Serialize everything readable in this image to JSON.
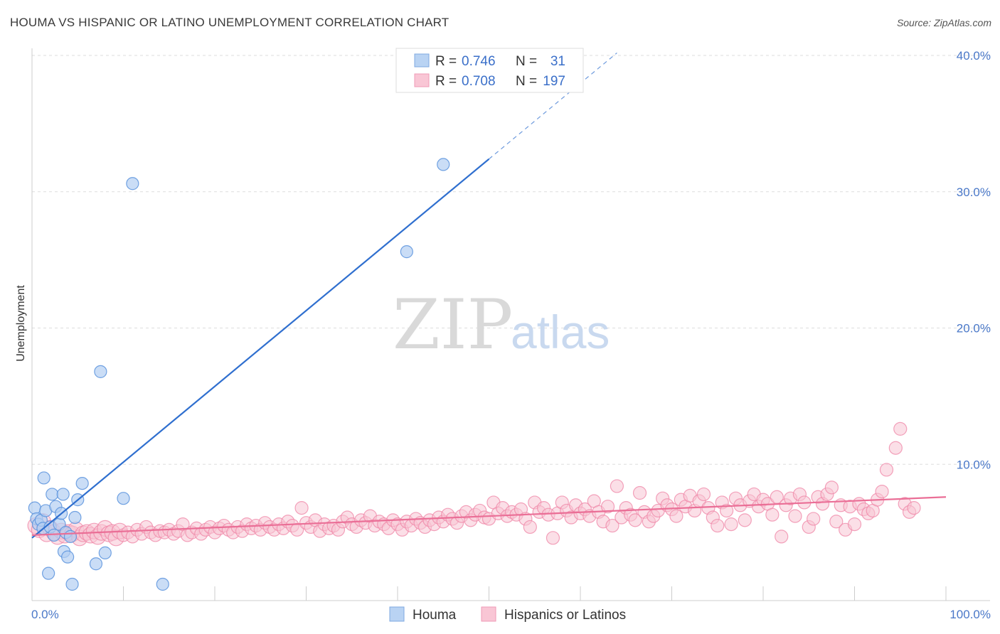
{
  "header": {
    "title": "HOUMA VS HISPANIC OR LATINO UNEMPLOYMENT CORRELATION CHART",
    "source": "Source: ZipAtlas.com"
  },
  "watermark": {
    "zip": "ZIP",
    "atlas": "atlas"
  },
  "legend": {
    "r_label": "R =",
    "n_label": "N =",
    "entries": [
      {
        "r": "0.746",
        "n": "31",
        "color": "#a9c8f0"
      },
      {
        "r": "0.708",
        "n": "197",
        "color": "#f7b8cb"
      }
    ]
  },
  "bottom_legend": [
    {
      "label": "Houma",
      "color": "#a9c8f0"
    },
    {
      "label": "Hispanics or Latinos",
      "color": "#f7b8cb"
    }
  ],
  "chart_data": {
    "type": "scatter",
    "ylabel": "Unemployment",
    "xlim": [
      0,
      100
    ],
    "ylim": [
      0,
      40
    ],
    "x_tick_labels": [
      "0.0%",
      "100.0%"
    ],
    "y_ticks": [
      10,
      20,
      30,
      40
    ],
    "y_tick_labels": [
      "10.0%",
      "20.0%",
      "30.0%",
      "40.0%"
    ],
    "grid": true,
    "colors": {
      "houma": "#5b93dd",
      "houma_fill": "#b4cff2",
      "hispanic": "#ef84a6",
      "hispanic_fill": "#f8c4d4",
      "houma_line": "#2f6fcf",
      "hispanic_line": "#ea6e96"
    },
    "series": [
      {
        "name": "Houma",
        "trend": {
          "x0": 0,
          "y0": 4.6,
          "x1": 50,
          "y1": 32.4,
          "dash_to_x": 64
        },
        "points": [
          [
            0.3,
            6.8
          ],
          [
            0.5,
            6.0
          ],
          [
            0.7,
            5.6
          ],
          [
            1.0,
            5.9
          ],
          [
            1.2,
            5.3
          ],
          [
            1.3,
            9.0
          ],
          [
            1.5,
            6.6
          ],
          [
            1.8,
            2.0
          ],
          [
            2.0,
            5.4
          ],
          [
            2.2,
            7.8
          ],
          [
            2.4,
            4.8
          ],
          [
            2.6,
            6.9
          ],
          [
            3.0,
            5.6
          ],
          [
            3.2,
            6.4
          ],
          [
            3.4,
            7.8
          ],
          [
            3.5,
            3.6
          ],
          [
            3.7,
            5.0
          ],
          [
            3.9,
            3.2
          ],
          [
            4.2,
            4.7
          ],
          [
            4.4,
            1.2
          ],
          [
            4.7,
            6.1
          ],
          [
            5.0,
            7.4
          ],
          [
            5.5,
            8.6
          ],
          [
            7.0,
            2.7
          ],
          [
            7.5,
            16.8
          ],
          [
            8.0,
            3.5
          ],
          [
            10.0,
            7.5
          ],
          [
            11.0,
            30.6
          ],
          [
            14.3,
            1.2
          ],
          [
            41.0,
            25.6
          ],
          [
            45.0,
            32.0
          ]
        ]
      },
      {
        "name": "Hispanics or Latinos",
        "trend": {
          "x0": 0,
          "y0": 4.8,
          "x1": 100,
          "y1": 7.6
        },
        "points": [
          [
            0.4,
            5.5
          ],
          [
            0.8,
            5.2
          ],
          [
            1.2,
            5.8
          ],
          [
            1.6,
            4.9
          ],
          [
            2.0,
            5.3
          ],
          [
            2.4,
            5.0
          ],
          [
            2.8,
            4.7
          ],
          [
            3.2,
            5.1
          ],
          [
            3.6,
            4.8
          ],
          [
            4.0,
            5.0
          ],
          [
            4.4,
            4.9
          ],
          [
            4.8,
            5.2
          ],
          [
            5.2,
            4.6
          ],
          [
            5.6,
            4.9
          ],
          [
            6.0,
            5.0
          ],
          [
            6.4,
            4.8
          ],
          [
            6.8,
            5.1
          ],
          [
            7.2,
            4.7
          ],
          [
            7.6,
            5.0
          ],
          [
            8.0,
            5.3
          ],
          [
            8.4,
            4.9
          ],
          [
            8.8,
            5.0
          ],
          [
            9.2,
            4.6
          ],
          [
            9.6,
            5.1
          ],
          [
            10.0,
            4.8
          ],
          [
            10.5,
            5.0
          ],
          [
            11.0,
            4.7
          ],
          [
            11.5,
            5.2
          ],
          [
            12.0,
            4.9
          ],
          [
            12.5,
            5.4
          ],
          [
            13.0,
            5.0
          ],
          [
            13.5,
            4.8
          ],
          [
            14.0,
            5.1
          ],
          [
            14.5,
            5.0
          ],
          [
            15.0,
            5.2
          ],
          [
            15.5,
            4.9
          ],
          [
            16.0,
            5.1
          ],
          [
            16.5,
            5.6
          ],
          [
            17.0,
            4.8
          ],
          [
            17.5,
            5.0
          ],
          [
            18.0,
            5.3
          ],
          [
            18.5,
            4.9
          ],
          [
            19.0,
            5.2
          ],
          [
            19.5,
            5.4
          ],
          [
            20.0,
            5.0
          ],
          [
            20.5,
            5.3
          ],
          [
            21.0,
            5.5
          ],
          [
            21.5,
            5.2
          ],
          [
            22.0,
            5.0
          ],
          [
            22.5,
            5.4
          ],
          [
            23.0,
            5.1
          ],
          [
            23.5,
            5.6
          ],
          [
            24.0,
            5.3
          ],
          [
            24.5,
            5.5
          ],
          [
            25.0,
            5.2
          ],
          [
            25.5,
            5.7
          ],
          [
            26.0,
            5.4
          ],
          [
            26.5,
            5.2
          ],
          [
            27.0,
            5.6
          ],
          [
            27.5,
            5.3
          ],
          [
            28.0,
            5.8
          ],
          [
            28.5,
            5.5
          ],
          [
            29.0,
            5.2
          ],
          [
            29.5,
            6.8
          ],
          [
            30.0,
            5.7
          ],
          [
            30.5,
            5.4
          ],
          [
            31.0,
            5.9
          ],
          [
            31.5,
            5.1
          ],
          [
            32.0,
            5.6
          ],
          [
            32.5,
            5.3
          ],
          [
            33.0,
            5.5
          ],
          [
            33.5,
            5.2
          ],
          [
            34.0,
            5.8
          ],
          [
            34.5,
            6.1
          ],
          [
            35.0,
            5.6
          ],
          [
            35.5,
            5.4
          ],
          [
            36.0,
            5.9
          ],
          [
            36.5,
            5.7
          ],
          [
            37.0,
            6.2
          ],
          [
            37.5,
            5.5
          ],
          [
            38.0,
            5.8
          ],
          [
            38.5,
            5.6
          ],
          [
            39.0,
            5.3
          ],
          [
            39.5,
            5.9
          ],
          [
            40.0,
            5.6
          ],
          [
            40.5,
            5.2
          ],
          [
            41.0,
            5.8
          ],
          [
            41.5,
            5.5
          ],
          [
            42.0,
            6.0
          ],
          [
            42.5,
            5.7
          ],
          [
            43.0,
            5.4
          ],
          [
            43.5,
            5.9
          ],
          [
            44.0,
            5.6
          ],
          [
            44.5,
            6.1
          ],
          [
            45.0,
            5.8
          ],
          [
            45.5,
            6.3
          ],
          [
            46.0,
            6.0
          ],
          [
            46.5,
            5.7
          ],
          [
            47.0,
            6.2
          ],
          [
            47.5,
            6.5
          ],
          [
            48.0,
            5.9
          ],
          [
            48.5,
            6.3
          ],
          [
            49.0,
            6.6
          ],
          [
            49.5,
            6.1
          ],
          [
            50.0,
            6.0
          ],
          [
            50.5,
            7.2
          ],
          [
            51.0,
            6.4
          ],
          [
            51.5,
            6.8
          ],
          [
            52.0,
            6.2
          ],
          [
            52.5,
            6.5
          ],
          [
            53.0,
            6.3
          ],
          [
            53.5,
            6.7
          ],
          [
            54.0,
            6.0
          ],
          [
            54.5,
            5.4
          ],
          [
            55.0,
            7.2
          ],
          [
            55.5,
            6.5
          ],
          [
            56.0,
            6.8
          ],
          [
            56.5,
            6.3
          ],
          [
            57.0,
            4.6
          ],
          [
            57.5,
            6.4
          ],
          [
            58.0,
            7.2
          ],
          [
            58.5,
            6.6
          ],
          [
            59.0,
            6.1
          ],
          [
            59.5,
            7.0
          ],
          [
            60.0,
            6.4
          ],
          [
            60.5,
            6.7
          ],
          [
            61.0,
            6.2
          ],
          [
            61.5,
            7.3
          ],
          [
            62.0,
            6.5
          ],
          [
            62.5,
            5.8
          ],
          [
            63.0,
            6.9
          ],
          [
            63.5,
            5.5
          ],
          [
            64.0,
            8.4
          ],
          [
            64.5,
            6.1
          ],
          [
            65.0,
            6.8
          ],
          [
            65.5,
            6.3
          ],
          [
            66.0,
            5.9
          ],
          [
            66.5,
            7.9
          ],
          [
            67.0,
            6.5
          ],
          [
            67.5,
            5.8
          ],
          [
            68.0,
            6.2
          ],
          [
            68.5,
            6.6
          ],
          [
            69.0,
            7.5
          ],
          [
            69.5,
            7.0
          ],
          [
            70.0,
            6.7
          ],
          [
            70.5,
            6.2
          ],
          [
            71.0,
            7.4
          ],
          [
            71.5,
            6.9
          ],
          [
            72.0,
            7.7
          ],
          [
            72.5,
            6.6
          ],
          [
            73.0,
            7.3
          ],
          [
            73.5,
            7.8
          ],
          [
            74.0,
            6.8
          ],
          [
            74.5,
            6.1
          ],
          [
            75.0,
            5.5
          ],
          [
            75.5,
            7.2
          ],
          [
            76.0,
            6.6
          ],
          [
            76.5,
            5.6
          ],
          [
            77.0,
            7.5
          ],
          [
            77.5,
            7.0
          ],
          [
            78.0,
            5.9
          ],
          [
            78.5,
            7.3
          ],
          [
            79.0,
            7.8
          ],
          [
            79.5,
            6.9
          ],
          [
            80.0,
            7.4
          ],
          [
            80.5,
            7.1
          ],
          [
            81.0,
            6.3
          ],
          [
            81.5,
            7.6
          ],
          [
            82.0,
            4.7
          ],
          [
            82.5,
            7.0
          ],
          [
            83.0,
            7.5
          ],
          [
            83.5,
            6.2
          ],
          [
            84.0,
            7.8
          ],
          [
            84.5,
            7.2
          ],
          [
            85.0,
            5.4
          ],
          [
            85.5,
            6.0
          ],
          [
            86.0,
            7.6
          ],
          [
            86.5,
            7.1
          ],
          [
            87.0,
            7.8
          ],
          [
            87.5,
            8.3
          ],
          [
            88.0,
            5.8
          ],
          [
            88.5,
            7.0
          ],
          [
            89.0,
            5.2
          ],
          [
            89.5,
            6.9
          ],
          [
            90.0,
            5.6
          ],
          [
            90.5,
            7.1
          ],
          [
            91.0,
            6.7
          ],
          [
            91.5,
            6.4
          ],
          [
            92.0,
            6.6
          ],
          [
            92.5,
            7.4
          ],
          [
            93.0,
            8.0
          ],
          [
            93.5,
            9.6
          ],
          [
            94.5,
            11.2
          ],
          [
            95.0,
            12.6
          ],
          [
            95.5,
            7.1
          ],
          [
            96.0,
            6.5
          ],
          [
            96.5,
            6.8
          ]
        ]
      }
    ]
  }
}
